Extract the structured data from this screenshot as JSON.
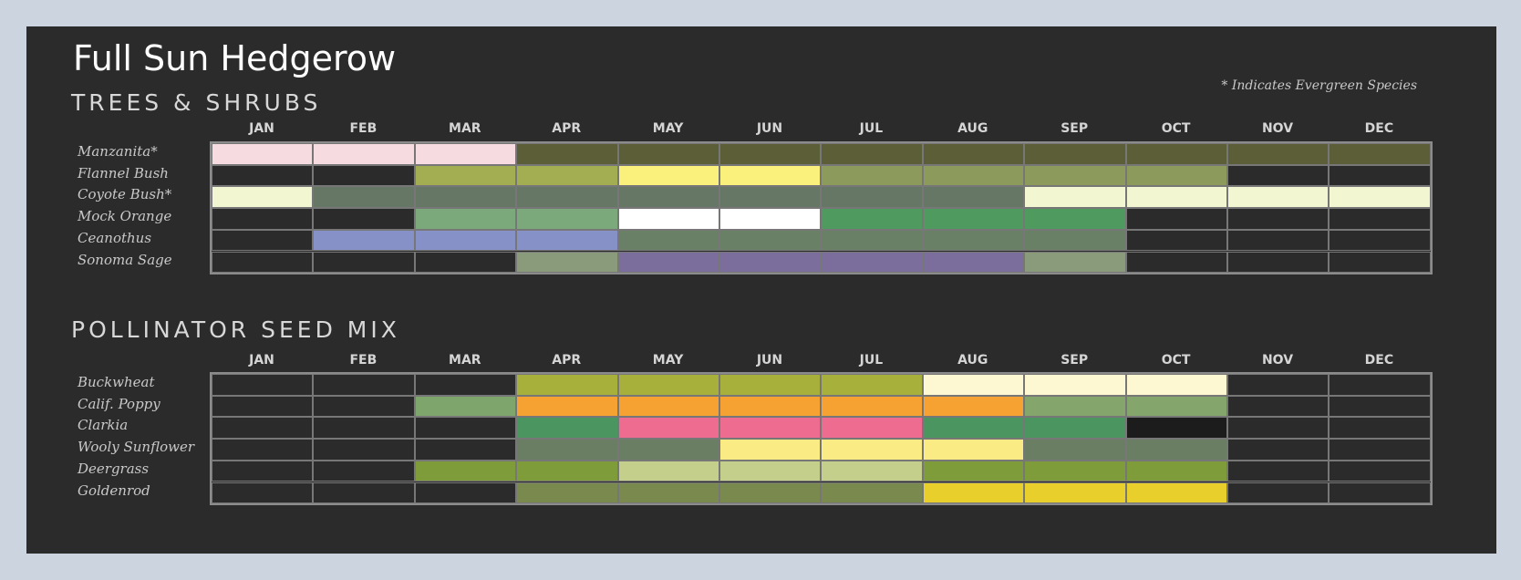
{
  "title": "Full Sun Hedgerow",
  "note": "* Indicates Evergreen Species",
  "months": [
    "JAN",
    "FEB",
    "MAR",
    "APR",
    "MAY",
    "JUN",
    "JUL",
    "AUG",
    "SEP",
    "OCT",
    "NOV",
    "DEC"
  ],
  "chart_data": {
    "type": "heatmap",
    "sections": [
      {
        "title": "TREES & SHRUBS",
        "rows": [
          {
            "label": "Manzanita*",
            "colors": [
              "#f6dbe0",
              "#f6dbe0",
              "#f6dbe0",
              "#5c5e38",
              "#5c5e38",
              "#5c5e38",
              "#5c5e38",
              "#5c5e38",
              "#5c5e38",
              "#5c5e38",
              "#5c5e38",
              "#5c5e38"
            ]
          },
          {
            "label": "Flannel Bush",
            "colors": [
              "#2b2b2b",
              "#2b2b2b",
              "#a3ad51",
              "#a3ad51",
              "#faf07c",
              "#faf07c",
              "#8c9a5c",
              "#8c9a5c",
              "#8c9a5c",
              "#8c9a5c",
              "#2b2b2b",
              "#2b2b2b"
            ]
          },
          {
            "label": "Coyote Bush*",
            "colors": [
              "#f2f7d2",
              "#677765",
              "#677765",
              "#677765",
              "#677765",
              "#677765",
              "#677765",
              "#677765",
              "#f2f7d2",
              "#f2f7d2",
              "#f2f7d2",
              "#f2f7d2"
            ]
          },
          {
            "label": "Mock Orange",
            "colors": [
              "#2b2b2b",
              "#2b2b2b",
              "#7ba97c",
              "#7ba97c",
              "#ffffff",
              "#ffffff",
              "#4f9a5f",
              "#4f9a5f",
              "#4f9a5f",
              "#2b2b2b",
              "#2b2b2b",
              "#2b2b2b"
            ]
          },
          {
            "label": "Ceanothus",
            "colors": [
              "#2b2b2b",
              "#8691c8",
              "#8691c8",
              "#8691c8",
              "#6a8066",
              "#6a8066",
              "#6a8066",
              "#6a8066",
              "#6a8066",
              "#2b2b2b",
              "#2b2b2b",
              "#2b2b2b"
            ]
          },
          {
            "label": "Sonoma Sage",
            "colors": [
              "#2b2b2b",
              "#2b2b2b",
              "#2b2b2b",
              "#8a9b7c",
              "#7b6d9c",
              "#7b6d9c",
              "#7b6d9c",
              "#7b6d9c",
              "#8a9b7c",
              "#2b2b2b",
              "#2b2b2b",
              "#2b2b2b"
            ]
          }
        ]
      },
      {
        "title": "POLLINATOR SEED MIX",
        "rows": [
          {
            "label": "Buckwheat",
            "colors": [
              "#2b2b2b",
              "#2b2b2b",
              "#2b2b2b",
              "#a8b03c",
              "#a8b03c",
              "#a8b03c",
              "#a8b03c",
              "#fdf7d2",
              "#fdf7d2",
              "#fdf7d2",
              "#2b2b2b",
              "#2b2b2b"
            ]
          },
          {
            "label": "Calif. Poppy",
            "colors": [
              "#2b2b2b",
              "#2b2b2b",
              "#7da56c",
              "#f6a232",
              "#f6a232",
              "#f6a232",
              "#f6a232",
              "#f6a232",
              "#84a66c",
              "#84a66c",
              "#2b2b2b",
              "#2b2b2b"
            ]
          },
          {
            "label": "Clarkia",
            "colors": [
              "#2b2b2b",
              "#2b2b2b",
              "#2b2b2b",
              "#4b9660",
              "#ed6c8f",
              "#ed6c8f",
              "#ed6c8f",
              "#4b9660",
              "#4b9660",
              "#1c1c1c",
              "#2b2b2b",
              "#2b2b2b"
            ]
          },
          {
            "label": "Wooly Sunflower",
            "colors": [
              "#2b2b2b",
              "#2b2b2b",
              "#2b2b2b",
              "#6a7e63",
              "#6a7e63",
              "#fbeb84",
              "#fbeb84",
              "#fbeb84",
              "#6a7e63",
              "#6a7e63",
              "#2b2b2b",
              "#2b2b2b"
            ]
          },
          {
            "label": "Deergrass",
            "colors": [
              "#2b2b2b",
              "#2b2b2b",
              "#7e9c3a",
              "#7e9c3a",
              "#c4cf8c",
              "#c4cf8c",
              "#c4cf8c",
              "#7e9c3a",
              "#7e9c3a",
              "#7e9c3a",
              "#2b2b2b",
              "#2b2b2b"
            ]
          },
          {
            "label": "Goldenrod",
            "colors": [
              "#2b2b2b",
              "#2b2b2b",
              "#2b2b2b",
              "#7a8a4e",
              "#7a8a4e",
              "#7a8a4e",
              "#7a8a4e",
              "#e9cf2c",
              "#e9cf2c",
              "#e9cf2c",
              "#2b2b2b",
              "#2b2b2b"
            ]
          }
        ]
      }
    ]
  }
}
